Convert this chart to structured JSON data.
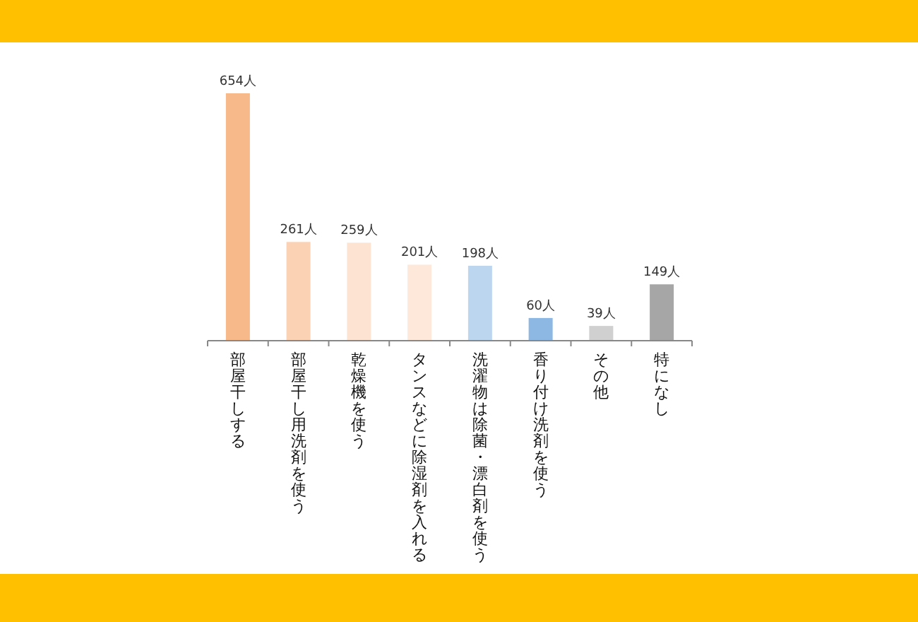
{
  "chart_data": {
    "type": "bar",
    "categories": [
      "部屋干しする",
      "部屋干し用洗剤を使う",
      "乾燥機を使う",
      "タンスなどに除湿剤を入れる",
      "洗濯物は除菌・漂白剤を使う",
      "香り付け洗剤を使う",
      "その他",
      "特になし"
    ],
    "values": [
      654,
      261,
      259,
      201,
      198,
      60,
      39,
      149
    ],
    "value_labels": [
      "654人",
      "261人",
      "259人",
      "201人",
      "198人",
      "60人",
      "39人",
      "149人"
    ],
    "colors": [
      "#f7b98a",
      "#fbd2b3",
      "#fce3d2",
      "#fde8da",
      "#bcd6ef",
      "#8db8e3",
      "#d0d0d0",
      "#a6a6a6"
    ]
  }
}
